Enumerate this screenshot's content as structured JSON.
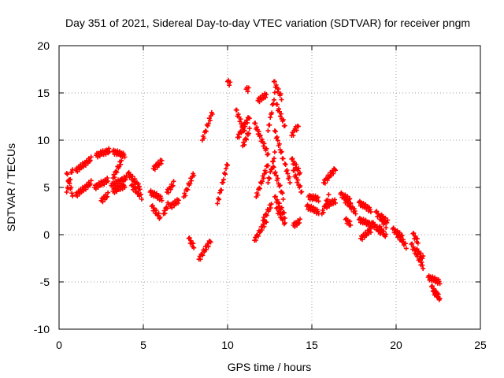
{
  "chart_data": {
    "type": "scatter",
    "title": "Day 351 of 2021, Sidereal Day-to-day VTEC variation (SDTVAR) for receiver pngm",
    "xlabel": "GPS time / hours",
    "ylabel": "SDTVAR / TECUs",
    "xlim": [
      0,
      25
    ],
    "ylim": [
      -10,
      20
    ],
    "xticks": [
      0,
      5,
      10,
      15,
      20,
      25
    ],
    "yticks": [
      -10,
      -5,
      0,
      5,
      10,
      15,
      20
    ],
    "xtick_labels": [
      "0",
      "5",
      "10",
      "15",
      "20",
      "25"
    ],
    "ytick_labels": [
      "-10",
      "-5",
      "0",
      "5",
      "10",
      "15",
      "20"
    ],
    "grid": true,
    "marker": "+",
    "marker_color": "#ff0000",
    "tracks": [
      {
        "x0": 0.45,
        "x1": 0.8,
        "y0": 4.5,
        "y1": 7.0
      },
      {
        "x0": 0.45,
        "x1": 0.8,
        "y0": 6.5,
        "y1": 4.2
      },
      {
        "x0": 1.0,
        "x1": 1.9,
        "y0": 4.2,
        "y1": 5.5
      },
      {
        "x0": 1.0,
        "x1": 1.9,
        "y0": 6.8,
        "y1": 8.0
      },
      {
        "x0": 2.1,
        "x1": 2.9,
        "y0": 5.0,
        "y1": 5.8
      },
      {
        "x0": 2.2,
        "x1": 3.0,
        "y0": 8.4,
        "y1": 8.9
      },
      {
        "x0": 2.5,
        "x1": 2.9,
        "y0": 3.6,
        "y1": 4.2
      },
      {
        "x0": 3.2,
        "x1": 3.9,
        "y0": 8.8,
        "y1": 8.4
      },
      {
        "x0": 3.2,
        "x1": 3.7,
        "y0": 6.0,
        "y1": 7.8
      },
      {
        "x0": 3.1,
        "x1": 4.0,
        "y0": 5.2,
        "y1": 6.0
      },
      {
        "x0": 3.2,
        "x1": 3.9,
        "y0": 4.6,
        "y1": 5.2
      },
      {
        "x0": 4.1,
        "x1": 4.8,
        "y0": 6.5,
        "y1": 5.0
      },
      {
        "x0": 4.3,
        "x1": 4.9,
        "y0": 5.2,
        "y1": 4.0
      },
      {
        "x0": 5.4,
        "x1": 6.1,
        "y0": 4.5,
        "y1": 3.8
      },
      {
        "x0": 5.5,
        "x1": 6.0,
        "y0": 3.0,
        "y1": 1.8
      },
      {
        "x0": 5.6,
        "x1": 6.1,
        "y0": 7.0,
        "y1": 7.8
      },
      {
        "x0": 6.2,
        "x1": 6.5,
        "y0": 2.2,
        "y1": 3.3
      },
      {
        "x0": 6.4,
        "x1": 6.8,
        "y0": 4.5,
        "y1": 5.4
      },
      {
        "x0": 6.6,
        "x1": 7.1,
        "y0": 3.0,
        "y1": 3.6
      },
      {
        "x0": 7.4,
        "x1": 8.0,
        "y0": 4.0,
        "y1": 6.5
      },
      {
        "x0": 7.7,
        "x1": 8.0,
        "y0": -0.4,
        "y1": -1.3
      },
      {
        "x0": 8.3,
        "x1": 9.0,
        "y0": -2.6,
        "y1": -0.6
      },
      {
        "x0": 8.5,
        "x1": 9.1,
        "y0": 10.0,
        "y1": 13.0
      },
      {
        "x0": 9.4,
        "x1": 10.0,
        "y0": 3.3,
        "y1": 7.6
      },
      {
        "x0": 10.0,
        "x1": 10.15,
        "y0": 16.2,
        "y1": 16.0
      },
      {
        "x0": 10.5,
        "x1": 11.0,
        "y0": 13.2,
        "y1": 11.0
      },
      {
        "x0": 10.6,
        "x1": 11.3,
        "y0": 10.3,
        "y1": 12.5
      },
      {
        "x0": 10.9,
        "x1": 11.3,
        "y0": 9.4,
        "y1": 11.0
      },
      {
        "x0": 11.1,
        "x1": 11.25,
        "y0": 15.4,
        "y1": 15.4
      },
      {
        "x0": 11.6,
        "x1": 11.9,
        "y0": 11.8,
        "y1": 10.5
      },
      {
        "x0": 11.8,
        "x1": 12.3,
        "y0": 14.2,
        "y1": 14.8
      },
      {
        "x0": 11.6,
        "x1": 12.3,
        "y0": -0.6,
        "y1": 1.5
      },
      {
        "x0": 11.7,
        "x1": 12.4,
        "y0": 4.0,
        "y1": 7.5
      },
      {
        "x0": 11.9,
        "x1": 12.4,
        "y0": 10.5,
        "y1": 8.5
      },
      {
        "x0": 12.1,
        "x1": 12.6,
        "y0": 1.5,
        "y1": 3.2
      },
      {
        "x0": 12.4,
        "x1": 12.8,
        "y0": 5.5,
        "y1": 8.5
      },
      {
        "x0": 12.4,
        "x1": 12.8,
        "y0": 11.0,
        "y1": 14.8
      },
      {
        "x0": 12.75,
        "x1": 13.2,
        "y0": 16.2,
        "y1": 14.5
      },
      {
        "x0": 12.9,
        "x1": 13.4,
        "y0": 13.8,
        "y1": 11.5
      },
      {
        "x0": 12.8,
        "x1": 13.3,
        "y0": 11.0,
        "y1": 8.0
      },
      {
        "x0": 12.7,
        "x1": 13.3,
        "y0": 7.2,
        "y1": 4.0
      },
      {
        "x0": 12.8,
        "x1": 13.4,
        "y0": 4.0,
        "y1": 2.0
      },
      {
        "x0": 12.9,
        "x1": 13.4,
        "y0": 2.8,
        "y1": 1.2
      },
      {
        "x0": 13.4,
        "x1": 13.7,
        "y0": 7.5,
        "y1": 5.6
      },
      {
        "x0": 13.8,
        "x1": 14.0,
        "y0": 10.5,
        "y1": 11.0
      },
      {
        "x0": 14.0,
        "x1": 14.2,
        "y0": 11.2,
        "y1": 11.4
      },
      {
        "x0": 13.8,
        "x1": 14.3,
        "y0": 8.0,
        "y1": 6.5
      },
      {
        "x0": 13.9,
        "x1": 14.4,
        "y0": 6.8,
        "y1": 4.5
      },
      {
        "x0": 13.9,
        "x1": 14.3,
        "y0": 1.0,
        "y1": 1.4
      },
      {
        "x0": 14.7,
        "x1": 15.4,
        "y0": 3.0,
        "y1": 2.4
      },
      {
        "x0": 14.8,
        "x1": 15.4,
        "y0": 4.0,
        "y1": 3.8
      },
      {
        "x0": 15.6,
        "x1": 16.0,
        "y0": 2.2,
        "y1": 4.0
      },
      {
        "x0": 15.7,
        "x1": 16.4,
        "y0": 5.5,
        "y1": 7.0
      },
      {
        "x0": 15.8,
        "x1": 16.4,
        "y0": 3.0,
        "y1": 3.6
      },
      {
        "x0": 16.7,
        "x1": 17.3,
        "y0": 4.3,
        "y1": 3.6
      },
      {
        "x0": 16.9,
        "x1": 17.6,
        "y0": 3.8,
        "y1": 2.4
      },
      {
        "x0": 17.0,
        "x1": 17.3,
        "y0": 1.6,
        "y1": 1.1
      },
      {
        "x0": 17.8,
        "x1": 18.5,
        "y0": 3.4,
        "y1": 2.6
      },
      {
        "x0": 17.8,
        "x1": 18.6,
        "y0": 1.6,
        "y1": 1.0
      },
      {
        "x0": 17.9,
        "x1": 18.5,
        "y0": -0.4,
        "y1": 0.5
      },
      {
        "x0": 18.6,
        "x1": 19.1,
        "y0": 1.2,
        "y1": 0.2
      },
      {
        "x0": 18.8,
        "x1": 19.4,
        "y0": 2.4,
        "y1": 1.0
      },
      {
        "x0": 19.0,
        "x1": 19.4,
        "y0": 0.8,
        "y1": -0.2
      },
      {
        "x0": 19.1,
        "x1": 19.5,
        "y0": 2.0,
        "y1": 1.3
      },
      {
        "x0": 19.8,
        "x1": 20.4,
        "y0": 0.6,
        "y1": -0.3
      },
      {
        "x0": 20.0,
        "x1": 20.6,
        "y0": 0.2,
        "y1": -1.2
      },
      {
        "x0": 20.9,
        "x1": 21.6,
        "y0": -1.0,
        "y1": -3.4
      },
      {
        "x0": 21.0,
        "x1": 21.3,
        "y0": 0.1,
        "y1": -0.8
      },
      {
        "x0": 21.2,
        "x1": 21.6,
        "y0": -1.6,
        "y1": -2.5
      },
      {
        "x0": 21.9,
        "x1": 22.6,
        "y0": -4.5,
        "y1": -5.0
      },
      {
        "x0": 22.1,
        "x1": 22.6,
        "y0": -5.5,
        "y1": -6.8
      },
      {
        "x0": 22.2,
        "x1": 22.5,
        "y0": -6.0,
        "y1": -6.5
      }
    ]
  }
}
